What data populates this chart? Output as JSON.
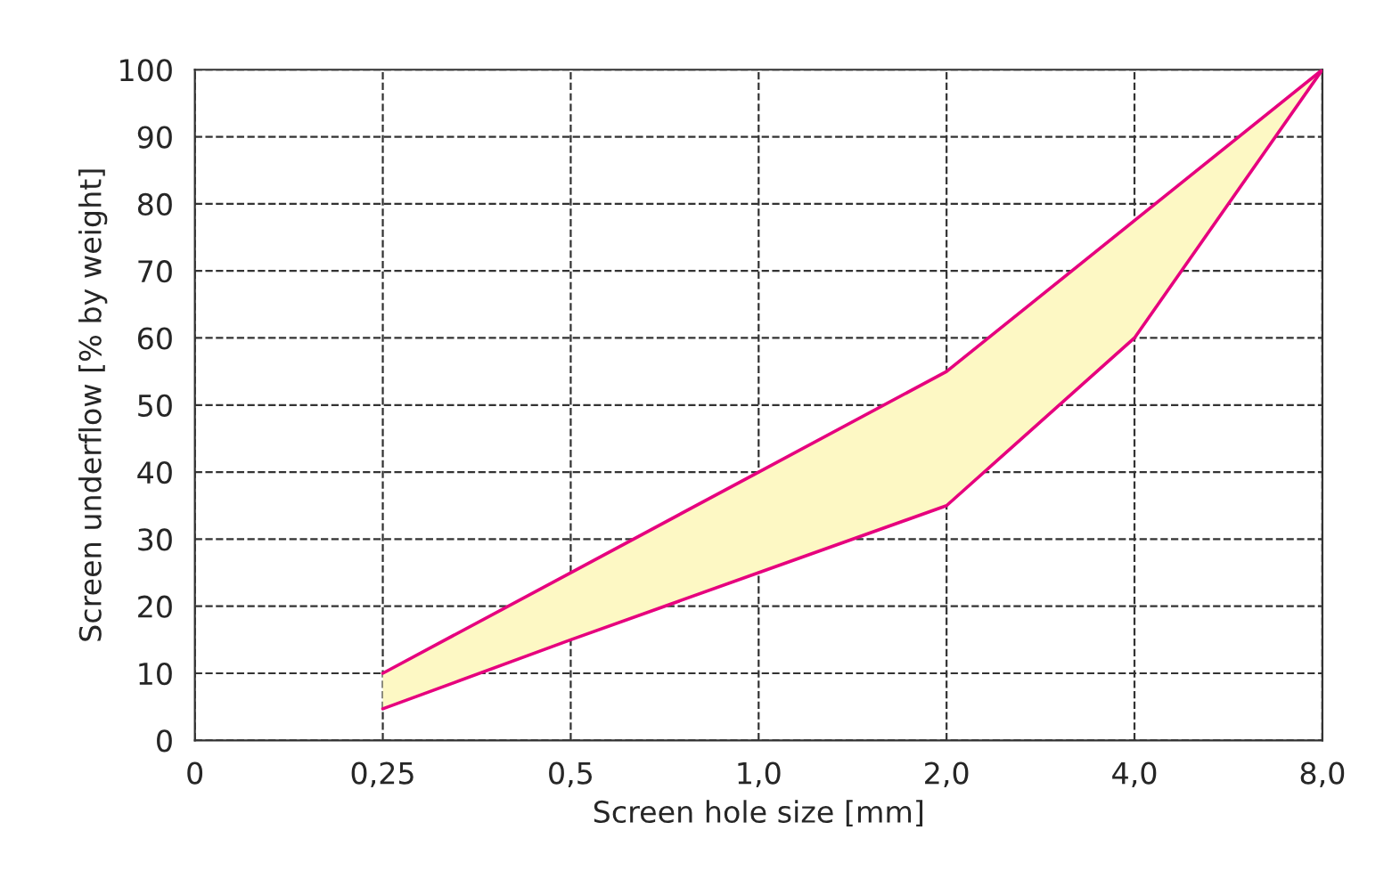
{
  "chart_data": {
    "type": "line",
    "xlabel": "Screen hole size [mm]",
    "ylabel": "Screen underflow [% by weight]",
    "categories": [
      "0",
      "0,25",
      "0,5",
      "1,0",
      "2,0",
      "4,0",
      "8,0"
    ],
    "ylim": [
      0,
      100
    ],
    "yticks": [
      0,
      10,
      20,
      30,
      40,
      50,
      60,
      70,
      80,
      90,
      100
    ],
    "series": [
      {
        "color": "#e6007e",
        "values": [
          null,
          10,
          25,
          40,
          55,
          77.5,
          100
        ],
        "lower": [
          null,
          4.7,
          15,
          25,
          35,
          60,
          100
        ],
        "upper": [
          null,
          10,
          25,
          40,
          55,
          77.5,
          100
        ]
      },
      {
        "color": "#e6007e",
        "values": [
          null,
          4.7,
          15,
          25,
          35,
          60,
          100
        ]
      }
    ],
    "grid": true,
    "line_style": "solid",
    "marker": "none",
    "legend": false
  }
}
